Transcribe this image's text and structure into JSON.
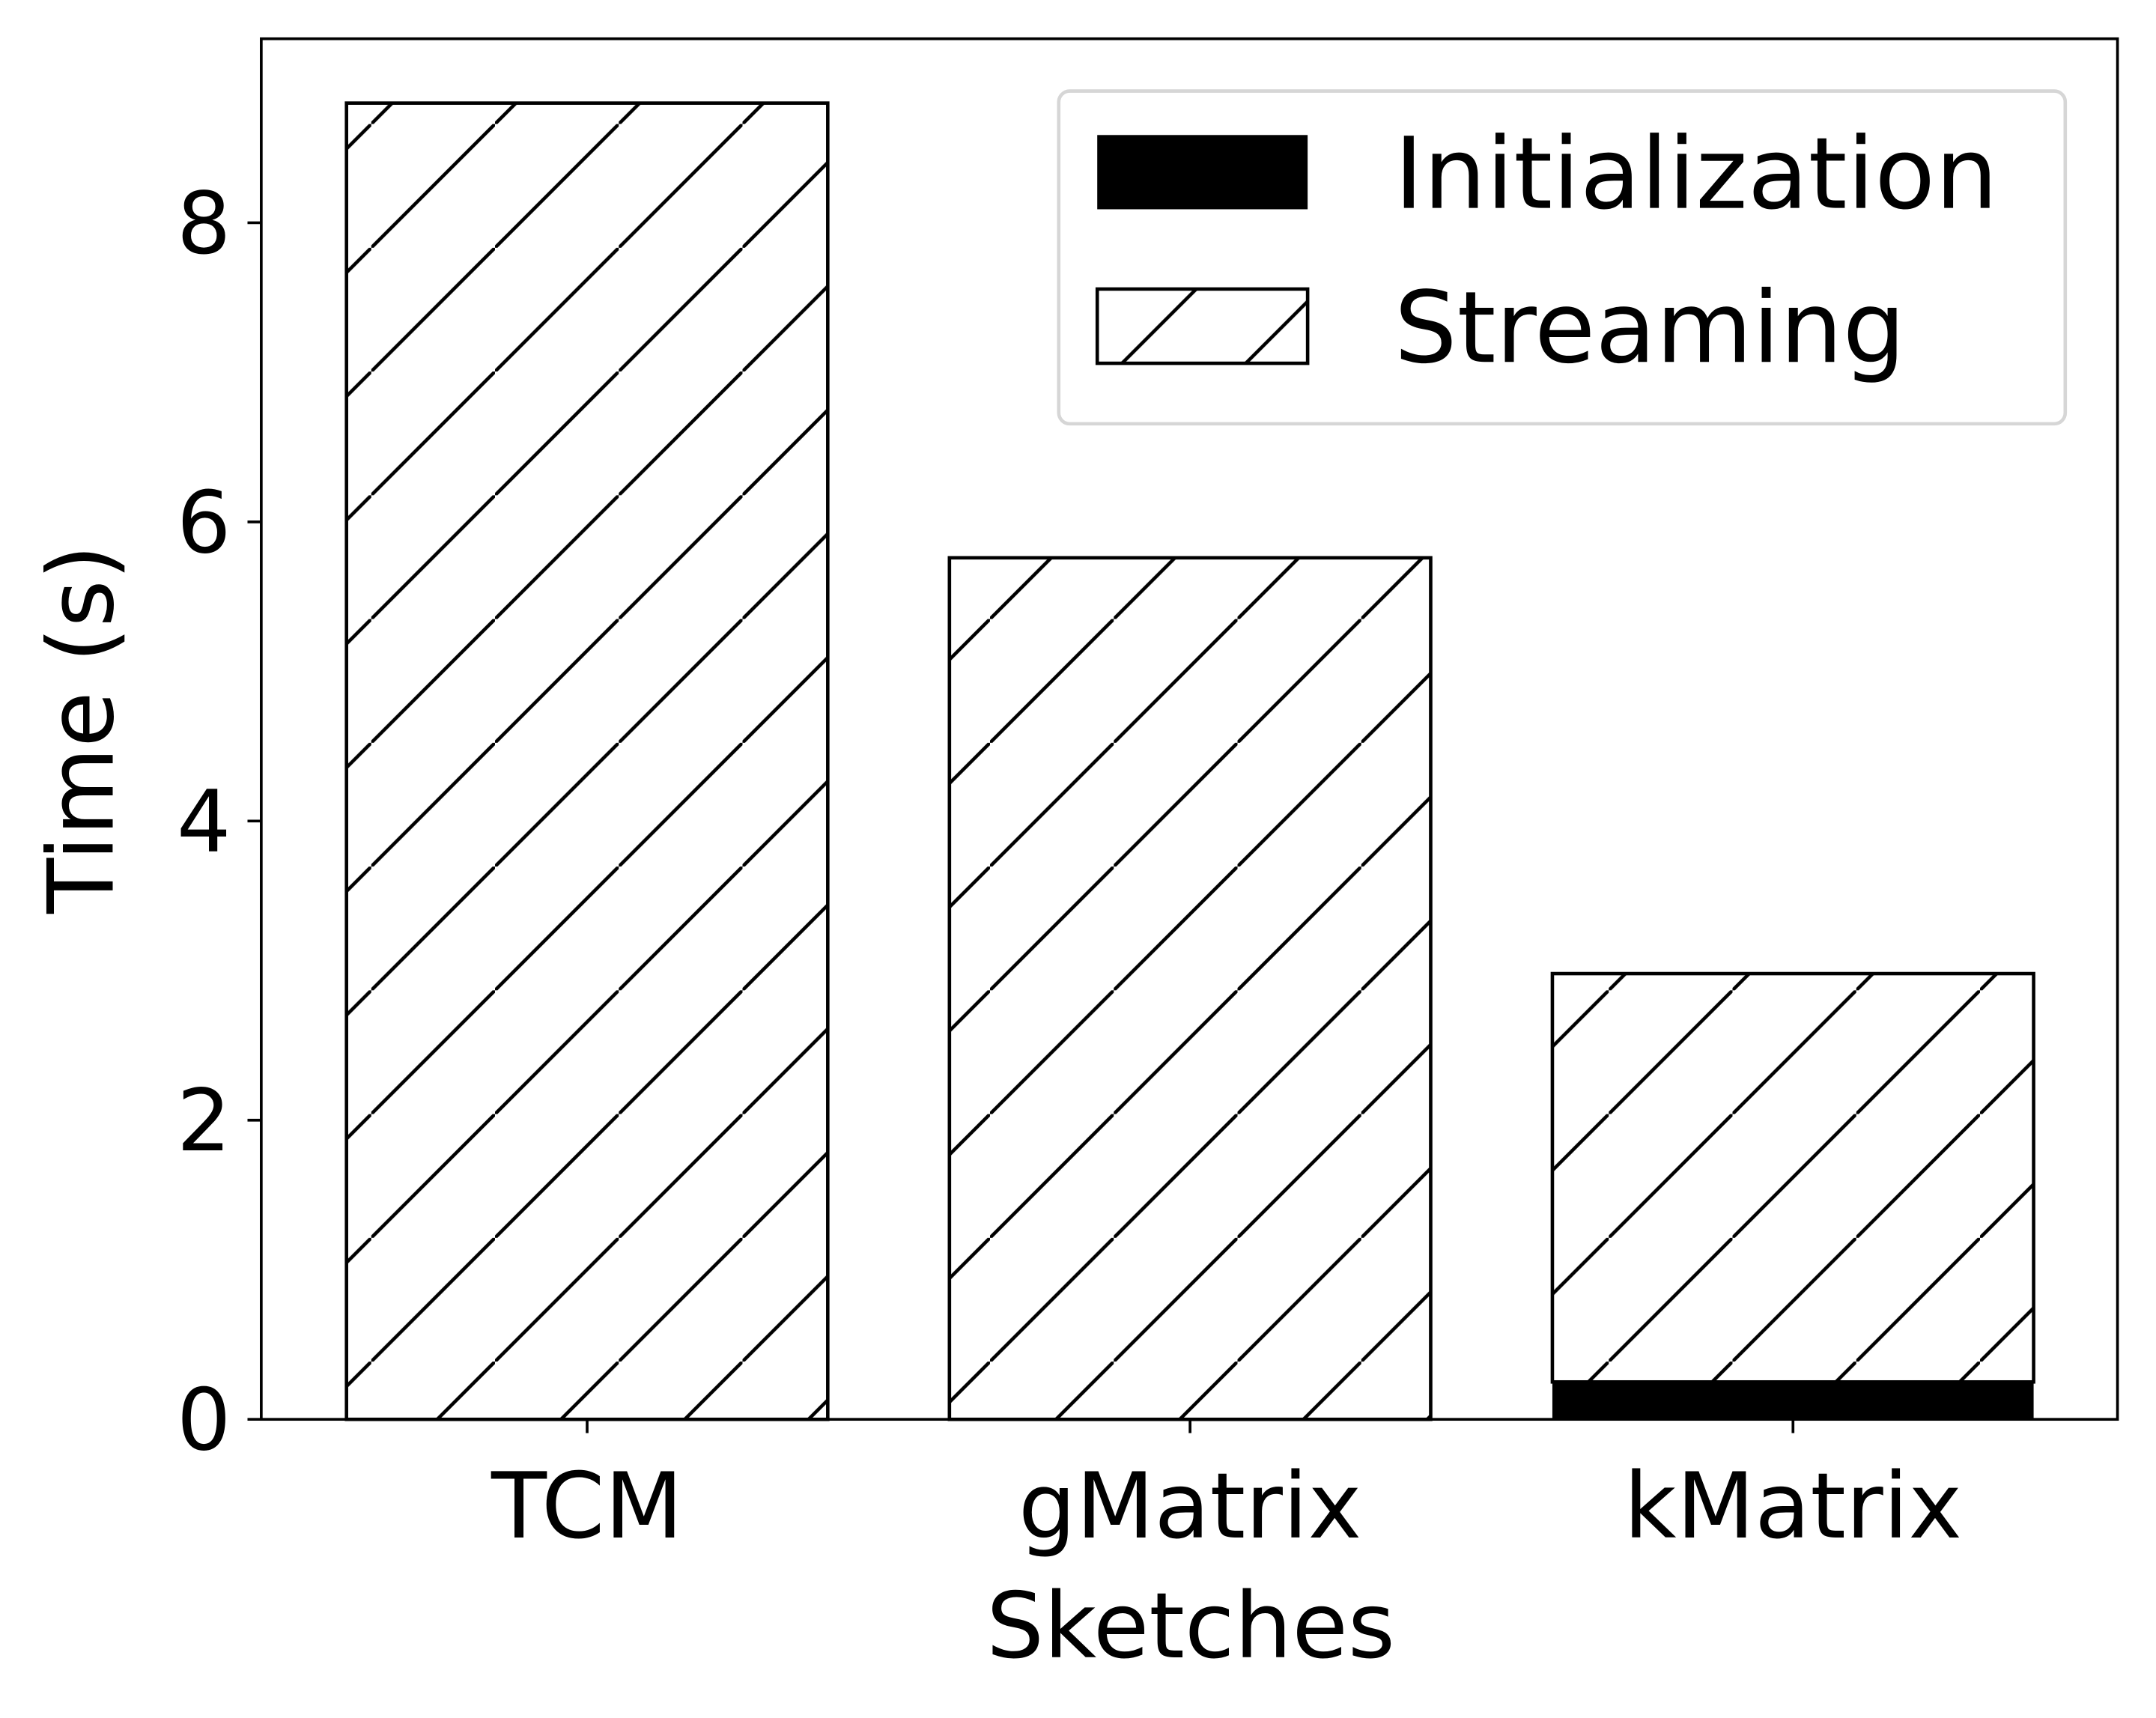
{
  "chart_data": {
    "type": "stacked_bar",
    "categories": [
      "TCM",
      "gMatrix",
      "kMatrix"
    ],
    "series": [
      {
        "name": "Initialization",
        "color": "#000000",
        "values": [
          0,
          0,
          0.25
        ]
      },
      {
        "name": "Streaming",
        "color": "#ffffff",
        "hatch": "/",
        "values": [
          8.8,
          5.76,
          2.73
        ]
      }
    ],
    "xlabel": "Sketches",
    "ylabel": "Time (s)",
    "ylim": [
      0,
      9.23
    ],
    "yticks": [
      0,
      2,
      4,
      6,
      8
    ],
    "legend": "upper right"
  }
}
